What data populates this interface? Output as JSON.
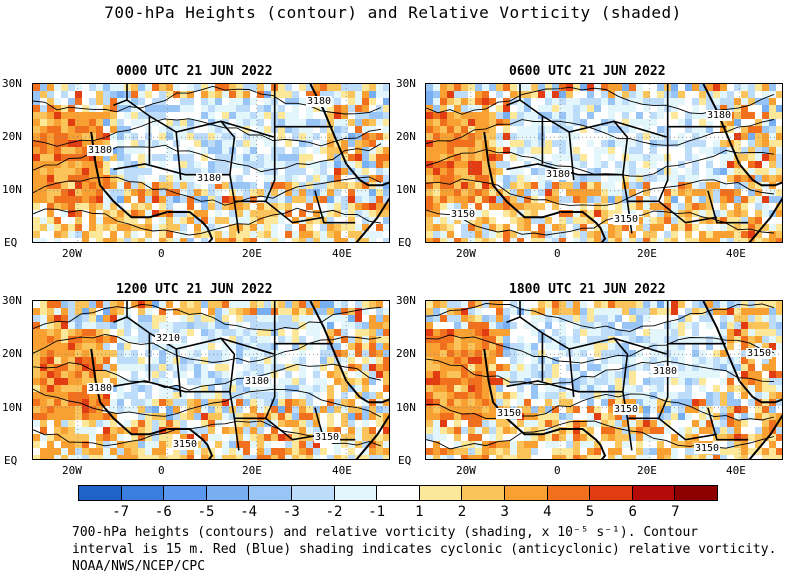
{
  "title": "700-hPa Heights (contour) and Relative Vorticity (shaded)",
  "panels": [
    {
      "time": "0000 UTC 21 JUN 2022",
      "labels": [
        "3180",
        "3180",
        "3180"
      ]
    },
    {
      "time": "0600 UTC 21 JUN 2022",
      "labels": [
        "3180",
        "3180",
        "3150",
        "3150"
      ]
    },
    {
      "time": "1200 UTC 21 JUN 2022",
      "labels": [
        "3210",
        "3180",
        "3180",
        "3150",
        "3150"
      ]
    },
    {
      "time": "1800 UTC 21 JUN 2022",
      "labels": [
        "3180",
        "3150",
        "3150",
        "3150",
        "3150"
      ]
    }
  ],
  "lat_ticks": [
    "30N",
    "20N",
    "10N",
    "EQ"
  ],
  "lon_ticks": [
    "20W",
    "0",
    "20E",
    "40E"
  ],
  "colorbar": {
    "labels": [
      "-7",
      "-6",
      "-5",
      "-4",
      "-3",
      "-2",
      "-1",
      "1",
      "2",
      "3",
      "4",
      "5",
      "6",
      "7"
    ],
    "colors": [
      "#1e63c8",
      "#3a7fe0",
      "#5a97ee",
      "#78aff2",
      "#99c5f6",
      "#bcdcfa",
      "#e2f6fb",
      "#ffffff",
      "#fde89a",
      "#fbc45a",
      "#f8a132",
      "#f0701e",
      "#e23d12",
      "#b40a0a",
      "#8c0000"
    ]
  },
  "caption": {
    "line1": "700-hPa heights (contours) and relative vorticity (shading, x 10⁻⁵ s⁻¹). Contour",
    "line2": "interval is 15 m. Red (Blue) shading indicates cyclonic (anticyclonic) relative vorticity.",
    "line3": "NOAA/NWS/NCEP/CPC"
  },
  "chart_data": {
    "type": "heatmap",
    "title": "700-hPa Heights (contour) and Relative Vorticity (shaded)",
    "panels": [
      "0000 UTC 21 JUN 2022",
      "0600 UTC 21 JUN 2022",
      "1200 UTC 21 JUN 2022",
      "1800 UTC 21 JUN 2022"
    ],
    "lat_range": [
      0,
      30
    ],
    "lon_range": [
      -30,
      50
    ],
    "levels": [
      -7,
      -6,
      -5,
      -4,
      -3,
      -2,
      -1,
      1,
      2,
      3,
      4,
      5,
      6,
      7
    ],
    "contour_interval_m": 15,
    "contour_labels": {
      "0000 UTC 21 JUN 2022": [
        3180,
        3180,
        3180
      ],
      "0600 UTC 21 JUN 2022": [
        3180,
        3180,
        3150,
        3150
      ],
      "1200 UTC 21 JUN 2022": [
        3210,
        3180,
        3180,
        3150,
        3150
      ],
      "1800 UTC 21 JUN 2022": [
        3180,
        3150,
        3150,
        3150,
        3150
      ]
    }
  }
}
